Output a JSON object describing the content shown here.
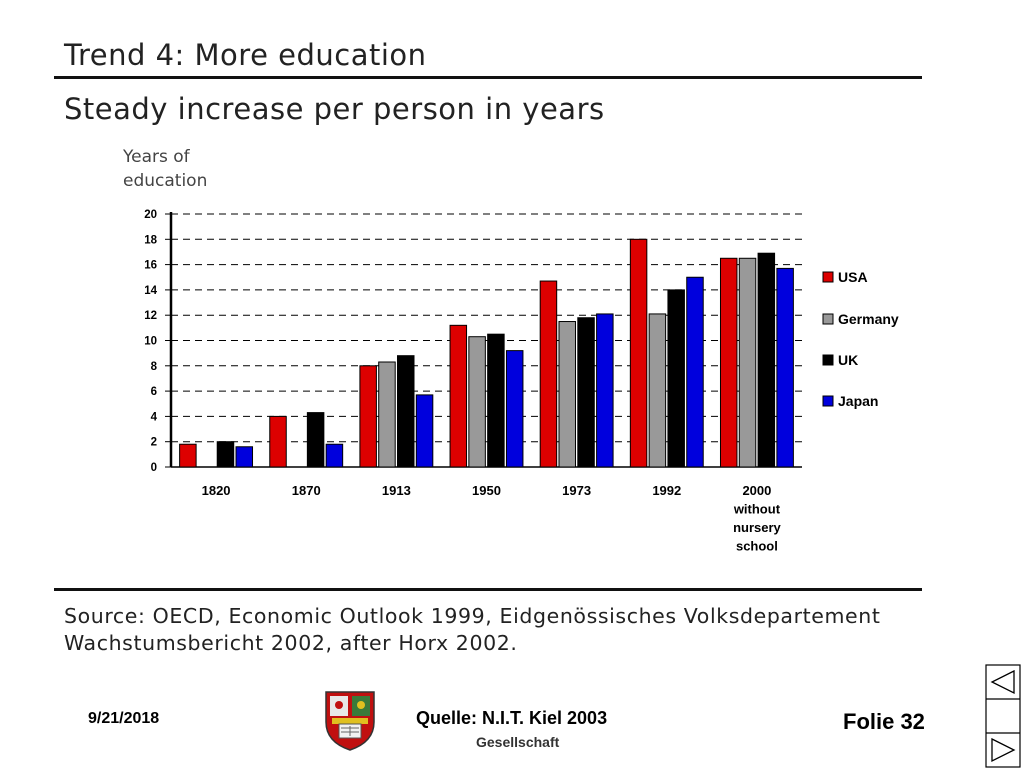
{
  "slide": {
    "title": "Trend 4: More education",
    "subtitle": "Steady increase per person in years",
    "source_line1": "Source: OECD, Economic Outlook 1999, Eidgenössisches Volksdepartement",
    "source_line2": "Wachstumsbericht 2002, after Horx 2002."
  },
  "footer": {
    "date": "9/21/2018",
    "source": "Quelle: N.I.T. Kiel 2003",
    "org": "Gesellschaft",
    "slide": "Folie 32"
  },
  "nav": {
    "prev_icon": "triangle-left-icon",
    "next_icon": "triangle-right-icon"
  },
  "chart_data": {
    "type": "bar",
    "ylabel": "Years of education",
    "ylim": [
      0,
      20
    ],
    "yticks": [
      0,
      2,
      4,
      6,
      8,
      10,
      12,
      14,
      16,
      18,
      20
    ],
    "grid": "dashed horizontal",
    "legend_position": "right",
    "categories": [
      "1820",
      "1870",
      "1913",
      "1950",
      "1973",
      "1992",
      "2000 without nursery school"
    ],
    "category_lines": [
      [
        "1820"
      ],
      [
        "1870"
      ],
      [
        "1913"
      ],
      [
        "1950"
      ],
      [
        "1973"
      ],
      [
        "1992"
      ],
      [
        "2000",
        "without",
        "nursery",
        "school"
      ]
    ],
    "series": [
      {
        "name": "USA",
        "color": "#dd0000",
        "values": [
          1.8,
          4.0,
          8.0,
          11.2,
          14.7,
          18.0,
          16.5
        ]
      },
      {
        "name": "Germany",
        "color": "#999999",
        "values": [
          null,
          null,
          8.3,
          10.3,
          11.5,
          12.1,
          16.5
        ]
      },
      {
        "name": "UK",
        "color": "#000000",
        "values": [
          2.0,
          4.3,
          8.8,
          10.5,
          11.8,
          14.0,
          16.9
        ]
      },
      {
        "name": "Japan",
        "color": "#0000dd",
        "values": [
          1.6,
          1.8,
          5.7,
          9.2,
          12.1,
          15.0,
          15.7
        ]
      }
    ]
  }
}
